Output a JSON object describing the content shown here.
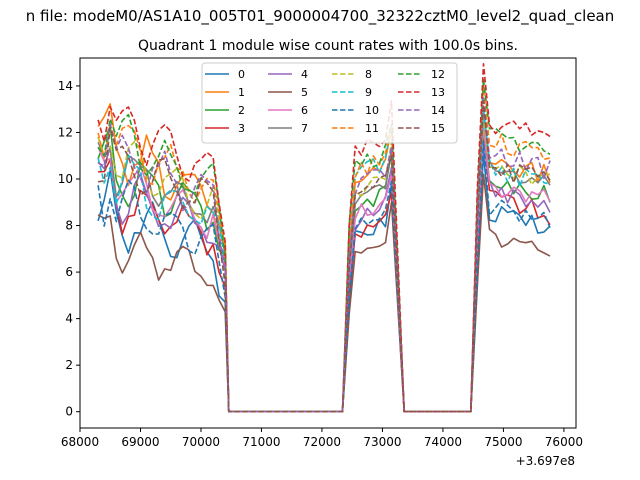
{
  "chart_data": {
    "type": "line",
    "suptitle": "n file: modeM0/AS1A10_005T01_9000004700_32322cztM0_level2_quad_clean",
    "title": "Quadrant 1 module wise count rates with 100.0s bins.",
    "xlabel": "",
    "ylabel": "",
    "x_offset_label": "+3.697e8",
    "xlim": [
      68000,
      76200
    ],
    "ylim": [
      -0.7,
      15.2
    ],
    "x_ticks": [
      68000,
      69000,
      70000,
      71000,
      72000,
      73000,
      74000,
      75000,
      76000
    ],
    "y_ticks": [
      0,
      2,
      4,
      6,
      8,
      10,
      12,
      14
    ],
    "x_tick_labels": [
      "68000",
      "69000",
      "70000",
      "71000",
      "72000",
      "73000",
      "74000",
      "75000",
      "76000"
    ],
    "y_tick_labels": [
      "0",
      "2",
      "4",
      "6",
      "8",
      "10",
      "12",
      "14"
    ],
    "grid": false,
    "legend_position": "top-center",
    "legend_columns": 4,
    "segments": [
      {
        "x_start": 68300,
        "x_end": 70400,
        "step": 100,
        "zero_after": [
          70460,
          72340
        ]
      },
      {
        "x_start": 72450,
        "x_end": 73150,
        "step": 100,
        "zero_after": [
          73360,
          74460
        ]
      },
      {
        "x_start": 74570,
        "x_end": 75800,
        "step": 100,
        "zero_after": []
      }
    ],
    "series": [
      {
        "name": "0",
        "color": "#1f77b4",
        "dash": "solid",
        "base": 8.6,
        "b2": 7.3,
        "b3": 8.8
      },
      {
        "name": "1",
        "color": "#ff7f0e",
        "dash": "solid",
        "base": 11.6,
        "b2": 9.7,
        "b3": 11.0
      },
      {
        "name": "2",
        "color": "#2ca02c",
        "dash": "solid",
        "base": 10.6,
        "b2": 8.6,
        "b3": 10.2
      },
      {
        "name": "3",
        "color": "#d62728",
        "dash": "solid",
        "base": 9.4,
        "b2": 7.5,
        "b3": 9.3
      },
      {
        "name": "4",
        "color": "#9467bd",
        "dash": "solid",
        "base": 9.8,
        "b2": 8.0,
        "b3": 9.6
      },
      {
        "name": "5",
        "color": "#8c564b",
        "dash": "solid",
        "base": 7.4,
        "b2": 6.4,
        "b3": 7.6
      },
      {
        "name": "6",
        "color": "#e377c2",
        "dash": "solid",
        "base": 10.2,
        "b2": 8.3,
        "b3": 9.9
      },
      {
        "name": "7",
        "color": "#7f7f7f",
        "dash": "solid",
        "base": 10.9,
        "b2": 8.9,
        "b3": 10.5
      },
      {
        "name": "8",
        "color": "#bcbd22",
        "dash": "dashed",
        "base": 11.2,
        "b2": 9.2,
        "b3": 10.8
      },
      {
        "name": "9",
        "color": "#17becf",
        "dash": "dashed",
        "base": 10.4,
        "b2": 9.9,
        "b3": 10.6
      },
      {
        "name": "10",
        "color": "#1f77b4",
        "dash": "dashed",
        "base": 9.2,
        "b2": 7.7,
        "b3": 9.0
      },
      {
        "name": "11",
        "color": "#ff7f0e",
        "dash": "dashed",
        "base": 11.9,
        "b2": 10.1,
        "b3": 11.8
      },
      {
        "name": "12",
        "color": "#2ca02c",
        "dash": "dashed",
        "base": 12.1,
        "b2": 10.3,
        "b3": 12.0
      },
      {
        "name": "13",
        "color": "#d62728",
        "dash": "dashed",
        "base": 12.9,
        "b2": 10.9,
        "b3": 12.6
      },
      {
        "name": "14",
        "color": "#9467bd",
        "dash": "dashed",
        "base": 11.4,
        "b2": 9.5,
        "b3": 11.2
      },
      {
        "name": "15",
        "color": "#8c564b",
        "dash": "dashed",
        "base": 11.0,
        "b2": 9.0,
        "b3": 10.7
      }
    ]
  }
}
